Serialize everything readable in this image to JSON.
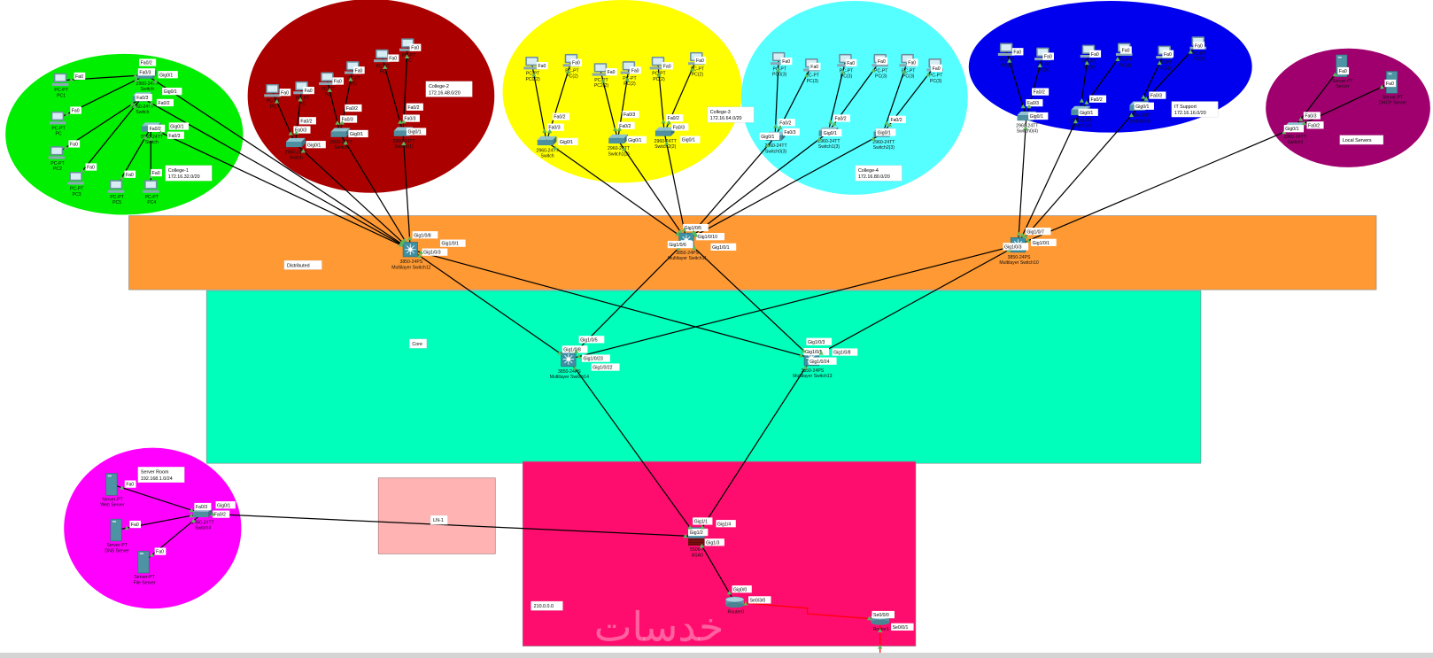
{
  "colors": {
    "college1": "#00ee00",
    "college2": "#aa0000",
    "college3": "#ffff00",
    "college4": "#55ffff",
    "it_support": "#0000ee",
    "local_servers": "#a0006e",
    "server_room": "#ff00ff",
    "distributed": "#ff9933",
    "core": "#00ffbb",
    "ln1": "#ffb3b3",
    "wan": "#ff0d6e",
    "link": "#000000",
    "serial_link": "#ff0000",
    "port_up": "#5cb85c"
  },
  "notes": {
    "college1": [
      "College-1",
      "172.16.32.0/20"
    ],
    "college2": [
      "College-2",
      "172.16.48.0/20"
    ],
    "college3": [
      "College-3",
      "172.16.64.0/20"
    ],
    "college4": [
      "College-4",
      "172.16.80.0/20"
    ],
    "it_support": [
      "IT Support",
      "172.16.16.0/20"
    ],
    "local_servers": [
      "Local Servers"
    ],
    "server_room": [
      "Server Room",
      "192.168.1.0/24"
    ],
    "distributed": [
      "Distributed"
    ],
    "core": [
      "Core"
    ],
    "ln1": [
      "LN-1"
    ],
    "wan": [
      "210.0.0.0"
    ]
  },
  "watermark": "خدسات",
  "devices": [
    {
      "id": "g_pc1",
      "type": "pc",
      "label": [
        "PC-PT",
        "PC1"
      ]
    },
    {
      "id": "g_pc0",
      "type": "pc",
      "label": [
        "PC-PT",
        "PC"
      ]
    },
    {
      "id": "g_pc2",
      "type": "pc",
      "label": [
        "PC-PT",
        "PC2"
      ]
    },
    {
      "id": "g_pc3",
      "type": "pc",
      "label": [
        "PC-PT",
        "PC3"
      ]
    },
    {
      "id": "g_pc5",
      "type": "pc",
      "label": [
        "PC-PT",
        "PC5"
      ]
    },
    {
      "id": "g_pc4",
      "type": "pc",
      "label": [
        "PC-PT",
        "PC4"
      ]
    },
    {
      "id": "g_sw0",
      "type": "switch",
      "label": [
        "2960-24TT",
        "Switch"
      ]
    },
    {
      "id": "g_sw1",
      "type": "switch",
      "label": [
        "2960-24TT",
        "Switch"
      ]
    },
    {
      "id": "g_sw2",
      "type": "switch",
      "label": [
        "2960-24TT",
        "Switch"
      ]
    },
    {
      "id": "r_pc0",
      "type": "pc",
      "label": [
        "PC-PT",
        "PC"
      ]
    },
    {
      "id": "r_pc1",
      "type": "pc",
      "label": [
        "PC-PT",
        "PC"
      ]
    },
    {
      "id": "r_pc2",
      "type": "pc",
      "label": [
        "PC-PT",
        "PC"
      ]
    },
    {
      "id": "r_pc3",
      "type": "pc",
      "label": [
        "PC-PT",
        "PC"
      ]
    },
    {
      "id": "r_pc4",
      "type": "pc",
      "label": [
        "PC-PT",
        "PC"
      ]
    },
    {
      "id": "r_pc5",
      "type": "pc",
      "label": [
        "PC-PT",
        "PC"
      ]
    },
    {
      "id": "r_sw0",
      "type": "switch",
      "label": [
        "2960-24TT",
        "Switch"
      ]
    },
    {
      "id": "r_sw1",
      "type": "switch",
      "label": [
        "2960-24TT",
        "Switch"
      ]
    },
    {
      "id": "r_sw2",
      "type": "switch",
      "label": [
        "2960-24TT",
        "Switch(1)"
      ]
    },
    {
      "id": "y_pc0",
      "type": "pc",
      "label": [
        "PC-PT",
        "PC0(2)"
      ]
    },
    {
      "id": "y_pc1",
      "type": "pc",
      "label": [
        "PC-PT",
        "PC(2)"
      ]
    },
    {
      "id": "y_pc2",
      "type": "pc",
      "label": [
        "PC-PT",
        "PC2(2)"
      ]
    },
    {
      "id": "y_pc3",
      "type": "pc",
      "label": [
        "PC-PT",
        "PC(2)"
      ]
    },
    {
      "id": "y_pc4",
      "type": "pc",
      "label": [
        "PC-PT",
        "PC(2)"
      ]
    },
    {
      "id": "y_pc5",
      "type": "pc",
      "label": [
        "PC-PT",
        "PC(2)"
      ]
    },
    {
      "id": "y_sw0",
      "type": "switch",
      "label": [
        "2960-24TT",
        "Switch"
      ]
    },
    {
      "id": "y_sw1",
      "type": "switch",
      "label": [
        "2960-24TT",
        "Switch1(2)"
      ]
    },
    {
      "id": "y_sw2",
      "type": "switch",
      "label": [
        "2960-24TT",
        "Switch2(2)"
      ]
    },
    {
      "id": "c_pc0",
      "type": "pc",
      "label": [
        "PC-PT",
        "PC0(3)"
      ]
    },
    {
      "id": "c_pc1",
      "type": "pc",
      "label": [
        "PC-PT",
        "PC(3)"
      ]
    },
    {
      "id": "c_pc2",
      "type": "pc",
      "label": [
        "PC-PT",
        "PC(3)"
      ]
    },
    {
      "id": "c_pc3",
      "type": "pc",
      "label": [
        "PC-PT",
        "PC(3)"
      ]
    },
    {
      "id": "c_pc4",
      "type": "pc",
      "label": [
        "PC-PT",
        "PC(3)"
      ]
    },
    {
      "id": "c_pc5",
      "type": "pc",
      "label": [
        "PC-PT",
        "PC(3)"
      ]
    },
    {
      "id": "c_sw0",
      "type": "switch",
      "label": [
        "2960-24TT",
        "Switch0(3)"
      ]
    },
    {
      "id": "c_sw1",
      "type": "switch",
      "label": [
        "2960-24TT",
        "Switch1(3)"
      ]
    },
    {
      "id": "c_sw2",
      "type": "switch",
      "label": [
        "2960-24TT",
        "Switch2(3)"
      ]
    },
    {
      "id": "b_pc0",
      "type": "pc",
      "label": [
        "PC-PT",
        "PC(4)"
      ]
    },
    {
      "id": "b_pc1",
      "type": "pc",
      "label": [
        "PC-PT",
        "PC(4)"
      ]
    },
    {
      "id": "b_pc2",
      "type": "pc",
      "label": [
        "PC-PT",
        "PC(4)"
      ]
    },
    {
      "id": "b_pc3",
      "type": "pc",
      "label": [
        "PC-PT",
        "PC(4)"
      ]
    },
    {
      "id": "b_pc4",
      "type": "pc",
      "label": [
        "PC-PT",
        "PC(4)"
      ]
    },
    {
      "id": "b_pc5",
      "type": "pc",
      "label": [
        "PC-PT",
        "PC(4)"
      ]
    },
    {
      "id": "b_sw0",
      "type": "switch",
      "label": [
        "2960-24TT",
        "Switch0(4)"
      ]
    },
    {
      "id": "b_sw1",
      "type": "switch",
      "label": [
        "2960-24TT",
        "Switch1(4)"
      ]
    },
    {
      "id": "b_sw2",
      "type": "switch",
      "label": [
        "2960-24TT",
        "Switch0(4)"
      ]
    },
    {
      "id": "l_srv0",
      "type": "server",
      "label": [
        "Server-PT",
        "Server"
      ]
    },
    {
      "id": "l_srv1",
      "type": "server",
      "label": [
        "Server-PT",
        "DHCP Server"
      ]
    },
    {
      "id": "l_sw3",
      "type": "switch",
      "label": [
        "2960-24TT",
        "Switch3"
      ]
    },
    {
      "id": "s_web",
      "type": "server",
      "label": [
        "Server-PT",
        "Web Server"
      ]
    },
    {
      "id": "s_dns",
      "type": "server",
      "label": [
        "Server-PT",
        "DNS Server"
      ]
    },
    {
      "id": "s_file",
      "type": "server",
      "label": [
        "Server-PT",
        "File Server"
      ]
    },
    {
      "id": "s_sw4",
      "type": "switch",
      "label": [
        "2960-24TT",
        "Switch4"
      ]
    },
    {
      "id": "ms12",
      "type": "mlswitch",
      "label": [
        "3850-24PS",
        "Multilayer Switch12"
      ]
    },
    {
      "id": "ms11",
      "type": "mlswitch",
      "label": [
        "3850-24PS",
        "Multilayer Switch11"
      ]
    },
    {
      "id": "ms10",
      "type": "mlswitch",
      "label": [
        "3850-24PS",
        "Multilayer Switch10"
      ]
    },
    {
      "id": "ms14",
      "type": "mlswitch",
      "label": [
        "3850-24PS",
        "Multilayer Switch14"
      ]
    },
    {
      "id": "ms13",
      "type": "mlswitch",
      "label": [
        "3850-24PS",
        "Multilayer Switch13"
      ]
    },
    {
      "id": "asa0",
      "type": "asa",
      "label": [
        "5506-X",
        "ASA0"
      ]
    },
    {
      "id": "router0",
      "type": "router",
      "label": [
        "Router0"
      ]
    },
    {
      "id": "router1",
      "type": "router",
      "label": [
        "Router1"
      ]
    }
  ],
  "links": [
    {
      "a": "g_pc1",
      "pa": "Fa0",
      "b": "g_sw0",
      "pb": "Fa0/3"
    },
    {
      "a": "g_pc0",
      "pa": "Fa0",
      "b": "g_sw0",
      "pb": "Fa0/2"
    },
    {
      "a": "g_pc2",
      "pa": "Fa0",
      "b": "g_sw1",
      "pb": "Fa0/3"
    },
    {
      "a": "g_pc3",
      "pa": "Fa0",
      "b": "g_sw1",
      "pb": "Fa0/2"
    },
    {
      "a": "g_pc5",
      "pa": "Fa0",
      "b": "g_sw2",
      "pb": "Fa0/2"
    },
    {
      "a": "g_pc4",
      "pa": "Fa0",
      "b": "g_sw2",
      "pb": "Fa0/3"
    },
    {
      "a": "g_sw0",
      "pa": "Gig0/1",
      "b": "ms12",
      "pb": ""
    },
    {
      "a": "g_sw1",
      "pa": "Gig0/1",
      "b": "ms12",
      "pb": ""
    },
    {
      "a": "g_sw2",
      "pa": "Gig0/1",
      "b": "ms12",
      "pb": ""
    },
    {
      "a": "r_pc0",
      "pa": "Fa0",
      "b": "r_sw0",
      "pb": "Fa0/3"
    },
    {
      "a": "r_pc1",
      "pa": "Fa0",
      "b": "r_sw0",
      "pb": "Fa0/2"
    },
    {
      "a": "r_pc2",
      "pa": "Fa0",
      "b": "r_sw1",
      "pb": "Fa0/3"
    },
    {
      "a": "r_pc3",
      "pa": "Fa0",
      "b": "r_sw1",
      "pb": "Fa0/2"
    },
    {
      "a": "r_pc4",
      "pa": "Fa0",
      "b": "r_sw2",
      "pb": "Fa0/3"
    },
    {
      "a": "r_pc5",
      "pa": "Fa0",
      "b": "r_sw2",
      "pb": "Fa0/2"
    },
    {
      "a": "r_sw0",
      "pa": "Gig0/1",
      "b": "ms12",
      "pb": ""
    },
    {
      "a": "r_sw1",
      "pa": "Gig0/1",
      "b": "ms12",
      "pb": ""
    },
    {
      "a": "r_sw2",
      "pa": "Gig0/1",
      "b": "ms12",
      "pb": "Gig1/0/8"
    },
    {
      "a": "y_pc0",
      "pa": "Fa0",
      "b": "y_sw0",
      "pb": "Fa0/3"
    },
    {
      "a": "y_pc1",
      "pa": "Fa0",
      "b": "y_sw0",
      "pb": "Fa0/2"
    },
    {
      "a": "y_pc2",
      "pa": "Fa0",
      "b": "y_sw1",
      "pb": "Fa0/2"
    },
    {
      "a": "y_pc3",
      "pa": "Fa0",
      "b": "y_sw1",
      "pb": "Fa0/3"
    },
    {
      "a": "y_pc4",
      "pa": "Fa0",
      "b": "y_sw2",
      "pb": "Fa0/2"
    },
    {
      "a": "y_pc5",
      "pa": "Fa0",
      "b": "y_sw2",
      "pb": "Fa0/3"
    },
    {
      "a": "y_sw0",
      "pa": "Gig0/1",
      "b": "ms11",
      "pb": ""
    },
    {
      "a": "y_sw1",
      "pa": "Gig0/1",
      "b": "ms11",
      "pb": "Gig1/0/5"
    },
    {
      "a": "y_sw2",
      "pa": "Gig0/1",
      "b": "ms11",
      "pb": ""
    },
    {
      "a": "c_pc0",
      "pa": "Fa0",
      "b": "c_sw0",
      "pb": "Fa0/2"
    },
    {
      "a": "c_pc1",
      "pa": "Fa0",
      "b": "c_sw0",
      "pb": "Fa0/3"
    },
    {
      "a": "c_pc2",
      "pa": "Fa0",
      "b": "c_sw1",
      "pb": "Fa0/2"
    },
    {
      "a": "c_pc3",
      "pa": "Fa0",
      "b": "c_sw1",
      "pb": ""
    },
    {
      "a": "c_pc4",
      "pa": "Fa0",
      "b": "c_sw2",
      "pb": "Fa0/2"
    },
    {
      "a": "c_pc5",
      "pa": "Fa0",
      "b": "c_sw2",
      "pb": ""
    },
    {
      "a": "c_sw0",
      "pa": "Gig0/1",
      "b": "ms11",
      "pb": "Gig1/0/10"
    },
    {
      "a": "c_sw1",
      "pa": "Gig0/1",
      "b": "ms11",
      "pb": ""
    },
    {
      "a": "c_sw2",
      "pa": "Gig0/1",
      "b": "ms11",
      "pb": ""
    },
    {
      "a": "b_pc0",
      "pa": "Fa0",
      "b": "b_sw0",
      "pb": "Fa0/3"
    },
    {
      "a": "b_pc1",
      "pa": "Fa0",
      "b": "b_sw0",
      "pb": "Fa0/2"
    },
    {
      "a": "b_pc2",
      "pa": "Fa0",
      "b": "b_sw1",
      "pb": ""
    },
    {
      "a": "b_pc3",
      "pa": "Fa0",
      "b": "b_sw1",
      "pb": "Fa0/2"
    },
    {
      "a": "b_pc4",
      "pa": "Fa0",
      "b": "b_sw2",
      "pb": ""
    },
    {
      "a": "b_pc5",
      "pa": "Fa0",
      "b": "b_sw2",
      "pb": "Fa0/3"
    },
    {
      "a": "b_sw0",
      "pa": "Gig0/1",
      "b": "ms10",
      "pb": ""
    },
    {
      "a": "b_sw1",
      "pa": "Gig0/1",
      "b": "ms10",
      "pb": "Gig1/0/7"
    },
    {
      "a": "b_sw2",
      "pa": "Gig0/1",
      "b": "ms10",
      "pb": ""
    },
    {
      "a": "l_srv0",
      "pa": "Fa0",
      "b": "l_sw3",
      "pb": "Fa0/3"
    },
    {
      "a": "l_srv1",
      "pa": "Fa0",
      "b": "l_sw3",
      "pb": "Fa0/2"
    },
    {
      "a": "l_sw3",
      "pa": "Gig0/1",
      "b": "ms10",
      "pb": "Gig1/0/1"
    },
    {
      "a": "s_web",
      "pa": "Fa0",
      "b": "s_sw4",
      "pb": "Fa0/3"
    },
    {
      "a": "s_dns",
      "pa": "Fa0",
      "b": "s_sw4",
      "pb": ""
    },
    {
      "a": "s_file",
      "pa": "Fa0",
      "b": "s_sw4",
      "pb": "Fa0/2"
    },
    {
      "a": "s_sw4",
      "pa": "Gig0/1",
      "b": "asa0",
      "pb": "Gig1/2"
    },
    {
      "a": "ms12",
      "pa": "Gig1/0/3",
      "b": "ms14",
      "pb": "Gig1/0/8"
    },
    {
      "a": "ms12",
      "pa": "Gig1/0/1",
      "b": "ms13",
      "pb": "Gig1/0/5"
    },
    {
      "a": "ms11",
      "pa": "Gig1/0/6",
      "b": "ms14",
      "pb": "Gig1/0/5"
    },
    {
      "a": "ms11",
      "pa": "Gig1/0/1",
      "b": "ms13",
      "pb": "Gig1/0/3"
    },
    {
      "a": "ms10",
      "pa": "",
      "b": "ms14",
      "pb": "Gig1/0/23"
    },
    {
      "a": "ms10",
      "pa": "Gig1/0/3",
      "b": "ms13",
      "pb": "Gig1/0/8"
    },
    {
      "a": "ms14",
      "pa": "Gig1/0/22",
      "b": "asa0",
      "pb": "Gig1/1"
    },
    {
      "a": "ms13",
      "pa": "Gig1/0/24",
      "b": "asa0",
      "pb": "Gig1/4"
    },
    {
      "a": "asa0",
      "pa": "Gig1/3",
      "b": "router0",
      "pb": "Gig0/0"
    },
    {
      "a": "router0",
      "pa": "Se0/3/0",
      "b": "router1",
      "pb": "Se0/0/0",
      "kind": "serial"
    },
    {
      "a": "router1",
      "pa": "Se0/0/1",
      "b": "offscreen",
      "pb": "",
      "kind": "serial"
    }
  ]
}
